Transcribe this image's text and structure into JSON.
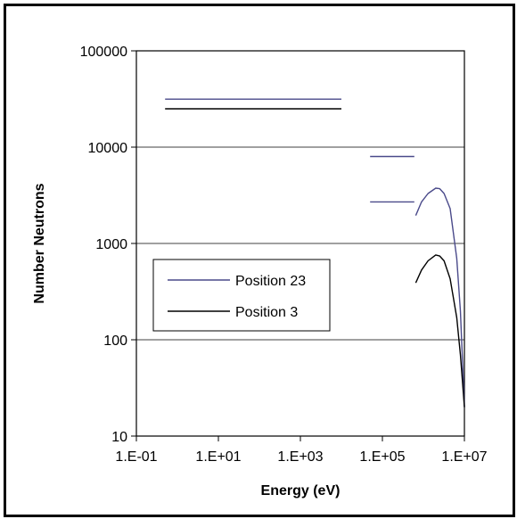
{
  "chart_data": {
    "type": "line",
    "title": "",
    "xlabel": "Energy (eV)",
    "ylabel": "Number Neutrons",
    "x_scale": "log",
    "y_scale": "log",
    "xlim": [
      0.1,
      10000000
    ],
    "ylim": [
      10,
      100000
    ],
    "x_ticks": [
      "1.E-01",
      "1.E+01",
      "1.E+03",
      "1.E+05",
      "1.E+07"
    ],
    "x_tick_values": [
      0.1,
      10,
      1000,
      100000,
      10000000
    ],
    "y_ticks": [
      "100000",
      "10000",
      "1000",
      "100",
      "10"
    ],
    "y_tick_values": [
      100000,
      10000,
      1000,
      100,
      10
    ],
    "grid": "horizontal",
    "legend_position": "center-left",
    "series": [
      {
        "name": "Position 23",
        "color": "#4a4a8a",
        "segments": [
          [
            [
              0.5,
              31500
            ],
            [
              10000,
              31500
            ]
          ],
          [
            [
              50000,
              8000
            ],
            [
              600000,
              8000
            ]
          ],
          [
            [
              50000,
              2700
            ],
            [
              600000,
              2700
            ]
          ],
          [
            [
              650000,
              1950
            ],
            [
              900000,
              2700
            ],
            [
              1300000,
              3300
            ],
            [
              2000000,
              3750
            ],
            [
              2500000,
              3700
            ],
            [
              3200000,
              3300
            ],
            [
              4500000,
              2300
            ],
            [
              6500000,
              700
            ],
            [
              8000000,
              200
            ],
            [
              10000000,
              20
            ]
          ]
        ]
      },
      {
        "name": "Position 3",
        "color": "#000000",
        "segments": [
          [
            [
              0.5,
              25000
            ],
            [
              10000,
              25000
            ]
          ],
          [
            [
              650000,
              390
            ],
            [
              900000,
              530
            ],
            [
              1300000,
              660
            ],
            [
              2000000,
              760
            ],
            [
              2500000,
              740
            ],
            [
              3200000,
              660
            ],
            [
              4500000,
              430
            ],
            [
              6500000,
              170
            ],
            [
              8000000,
              70
            ],
            [
              10000000,
              20
            ]
          ]
        ]
      }
    ]
  }
}
